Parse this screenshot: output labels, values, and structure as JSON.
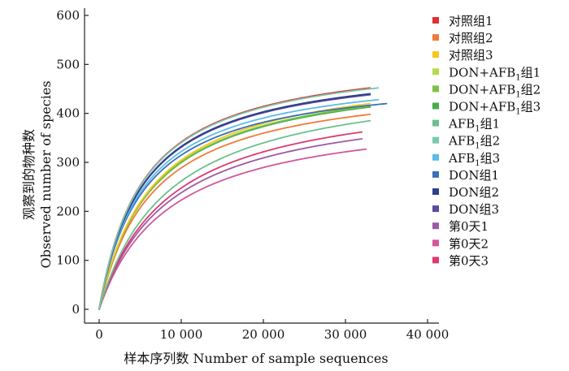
{
  "chart_data": {
    "type": "line",
    "title": "",
    "xlabel": "样本序列数 Number of sample sequences",
    "ylabel_cn": "观察到的物种数",
    "ylabel_en": "Observed number of species",
    "xlim": [
      0,
      40000
    ],
    "ylim": [
      0,
      600
    ],
    "xticks": [
      0,
      10000,
      20000,
      30000,
      40000
    ],
    "xtick_labels": [
      "0",
      "10 000",
      "20 000",
      "30 000",
      "40 000"
    ],
    "yticks": [
      0,
      100,
      200,
      300,
      400,
      500,
      600
    ],
    "ytick_labels": [
      "0",
      "100",
      "200",
      "300",
      "400",
      "500",
      "600"
    ],
    "grid": false,
    "legend_position": "right",
    "series": [
      {
        "name": "对照组1",
        "color": "#e03030",
        "end_x": 33000,
        "end_y": 452,
        "k": 5400
      },
      {
        "name": "对照组2",
        "color": "#f07a3a",
        "end_x": 33000,
        "end_y": 398,
        "k": 6500
      },
      {
        "name": "对照组3",
        "color": "#f2c81e",
        "end_x": 33000,
        "end_y": 420,
        "k": 6500
      },
      {
        "name": "DON+AFB1组1",
        "color": "#b9d94a",
        "end_x": 32000,
        "end_y": 412,
        "k": 6500
      },
      {
        "name": "DON+AFB1组2",
        "color": "#7cc144",
        "end_x": 33000,
        "end_y": 415,
        "k": 6500
      },
      {
        "name": "DON+AFB1组3",
        "color": "#46ad4a",
        "end_x": 33000,
        "end_y": 413,
        "k": 6500
      },
      {
        "name": "AFB1组1",
        "color": "#6cc08c",
        "end_x": 33000,
        "end_y": 385,
        "k": 8500
      },
      {
        "name": "AFB1组2",
        "color": "#7bc8ae",
        "end_x": 34000,
        "end_y": 452,
        "k": 5400
      },
      {
        "name": "AFB1组3",
        "color": "#5bbce6",
        "end_x": 34000,
        "end_y": 428,
        "k": 5400
      },
      {
        "name": "DON组1",
        "color": "#3b6fb8",
        "end_x": 35000,
        "end_y": 420,
        "k": 5400
      },
      {
        "name": "DON组2",
        "color": "#2c3f8c",
        "end_x": 33000,
        "end_y": 440,
        "k": 5400
      },
      {
        "name": "DON组3",
        "color": "#5a4aa0",
        "end_x": 33000,
        "end_y": 438,
        "k": 5400
      },
      {
        "name": "第0天1",
        "color": "#9c59a8",
        "end_x": 32000,
        "end_y": 348,
        "k": 8500
      },
      {
        "name": "第0天2",
        "color": "#d1579a",
        "end_x": 32500,
        "end_y": 327,
        "k": 8500
      },
      {
        "name": "第0天3",
        "color": "#dc3a6e",
        "end_x": 32000,
        "end_y": 362,
        "k": 8500
      }
    ]
  }
}
